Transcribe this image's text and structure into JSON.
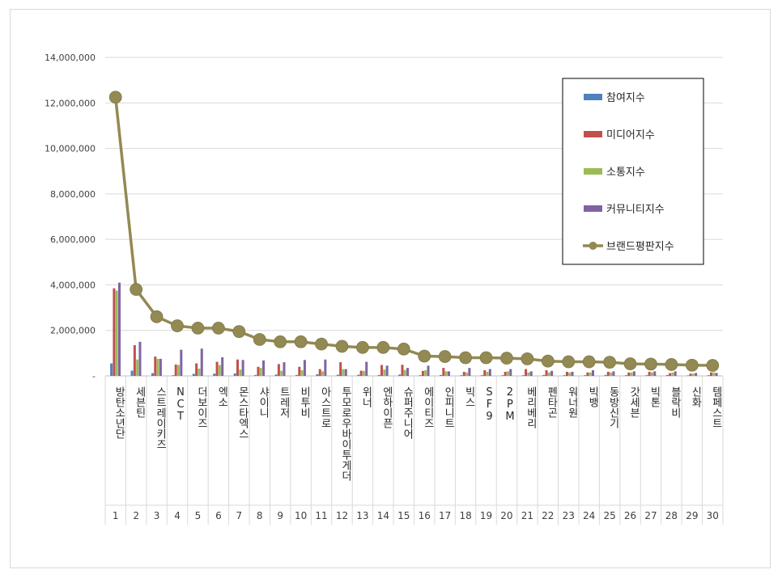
{
  "chart_data": {
    "type": "bar",
    "combo": "bar+line",
    "ylim": [
      0,
      14000000
    ],
    "yticks": [
      0,
      2000000,
      4000000,
      6000000,
      8000000,
      10000000,
      12000000,
      14000000
    ],
    "ytick_labels": [
      "-",
      "2,000,000",
      "4,000,000",
      "6,000,000",
      "8,000,000",
      "10,000,000",
      "12,000,000",
      "14,000,000"
    ],
    "grid": true,
    "legend_position": "top-right",
    "ranks": [
      "1",
      "2",
      "3",
      "4",
      "5",
      "6",
      "7",
      "8",
      "9",
      "10",
      "11",
      "12",
      "13",
      "14",
      "15",
      "16",
      "17",
      "18",
      "19",
      "20",
      "21",
      "22",
      "23",
      "24",
      "25",
      "26",
      "27",
      "28",
      "29",
      "30"
    ],
    "categories": [
      "방탄소년단",
      "세븐틴",
      "스트레이키즈",
      "NCT",
      "더보이즈",
      "엑소",
      "몬스타엑스",
      "샤이니",
      "트레저",
      "비투비",
      "아스트로",
      "투모로우바이투게더",
      "위너",
      "엔하이픈",
      "슈퍼주니어",
      "에이티즈",
      "인피니트",
      "빅스",
      "SF9",
      "2PM",
      "베리베리",
      "펜타곤",
      "워너원",
      "빅뱅",
      "동방신기",
      "갓세븐",
      "빅톤",
      "블락비",
      "신화",
      "템페스트"
    ],
    "series": [
      {
        "name": "참여지수",
        "kind": "bar",
        "color": "#4f81bd",
        "values": [
          550000,
          230000,
          120000,
          30000,
          90000,
          100000,
          110000,
          40000,
          60000,
          40000,
          70000,
          50000,
          50000,
          40000,
          60000,
          30000,
          40000,
          30000,
          30000,
          30000,
          30000,
          40000,
          30000,
          30000,
          40000,
          30000,
          30000,
          40000,
          20000,
          30000
        ]
      },
      {
        "name": "미디어지수",
        "kind": "bar",
        "color": "#c0504d",
        "values": [
          3850000,
          1350000,
          850000,
          500000,
          550000,
          620000,
          720000,
          400000,
          520000,
          400000,
          300000,
          600000,
          230000,
          480000,
          490000,
          220000,
          350000,
          180000,
          250000,
          180000,
          300000,
          250000,
          180000,
          150000,
          180000,
          150000,
          180000,
          120000,
          100000,
          150000
        ]
      },
      {
        "name": "소통지수",
        "kind": "bar",
        "color": "#9bbb59",
        "values": [
          3750000,
          720000,
          750000,
          480000,
          320000,
          480000,
          280000,
          350000,
          230000,
          250000,
          200000,
          300000,
          220000,
          280000,
          260000,
          250000,
          200000,
          150000,
          180000,
          200000,
          150000,
          150000,
          150000,
          150000,
          150000,
          150000,
          150000,
          150000,
          100000,
          150000
        ]
      },
      {
        "name": "커뮤니티지수",
        "kind": "bar",
        "color": "#8064a2",
        "values": [
          4100000,
          1500000,
          750000,
          1150000,
          1200000,
          820000,
          700000,
          680000,
          600000,
          700000,
          720000,
          300000,
          620000,
          450000,
          350000,
          450000,
          200000,
          350000,
          300000,
          300000,
          200000,
          220000,
          180000,
          250000,
          200000,
          200000,
          200000,
          200000,
          130000,
          130000
        ]
      },
      {
        "name": "브랜드평판지수",
        "kind": "line",
        "color": "#938953",
        "values": [
          12250000,
          3800000,
          2600000,
          2200000,
          2100000,
          2100000,
          1950000,
          1600000,
          1500000,
          1500000,
          1400000,
          1300000,
          1250000,
          1250000,
          1180000,
          870000,
          850000,
          800000,
          800000,
          780000,
          750000,
          650000,
          620000,
          620000,
          600000,
          530000,
          520000,
          500000,
          470000,
          460000
        ]
      }
    ]
  }
}
